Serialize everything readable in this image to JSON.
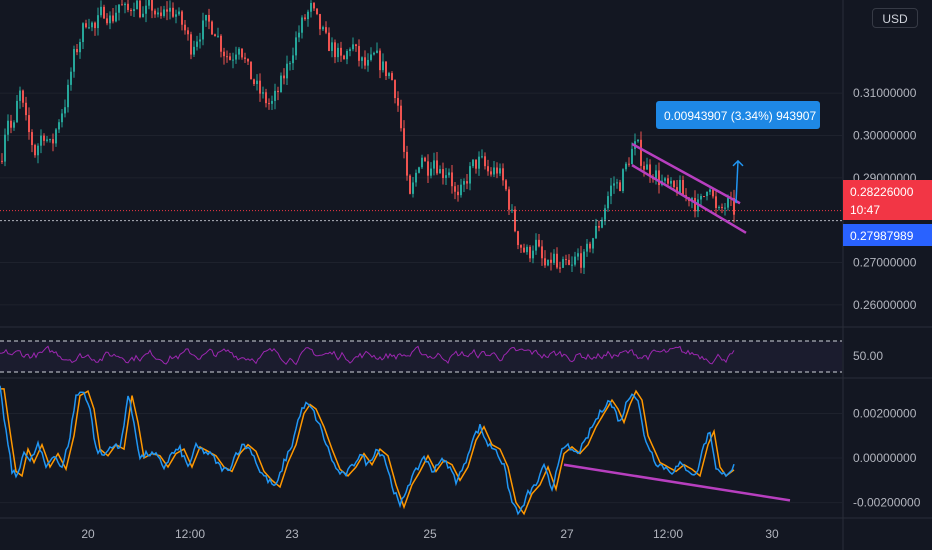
{
  "currency_button": "USD",
  "chart_data": {
    "type": "candlestick",
    "x_ticks": [
      "20",
      "12:00",
      "23",
      "25",
      "27",
      "12:00",
      "30"
    ],
    "price_ticks": [
      "0.31000000",
      "0.30000000",
      "0.29000000",
      "0.27000000",
      "0.26000000"
    ],
    "price_ylim": [
      0.255,
      0.332
    ],
    "last_price": {
      "label": "0.28226000",
      "value": 0.28226,
      "countdown": "10:47",
      "color": "#f23645"
    },
    "crosshair_price": {
      "label": "0.27987989",
      "value": 0.27988,
      "color": "#2962ff"
    },
    "measure_label": "0.00943907 (3.34%) 943907",
    "price_path": [
      [
        0,
        0.294
      ],
      [
        6,
        0.305
      ],
      [
        12,
        0.3
      ],
      [
        18,
        0.311
      ],
      [
        26,
        0.302
      ],
      [
        34,
        0.296
      ],
      [
        42,
        0.301
      ],
      [
        50,
        0.297
      ],
      [
        58,
        0.304
      ],
      [
        66,
        0.309
      ],
      [
        72,
        0.318
      ],
      [
        78,
        0.322
      ],
      [
        86,
        0.328
      ],
      [
        94,
        0.325
      ],
      [
        102,
        0.33
      ],
      [
        110,
        0.327
      ],
      [
        118,
        0.331
      ],
      [
        126,
        0.329
      ],
      [
        134,
        0.332
      ],
      [
        142,
        0.328
      ],
      [
        150,
        0.331
      ],
      [
        158,
        0.327
      ],
      [
        166,
        0.33
      ],
      [
        174,
        0.329
      ],
      [
        182,
        0.326
      ],
      [
        190,
        0.321
      ],
      [
        198,
        0.324
      ],
      [
        206,
        0.327
      ],
      [
        214,
        0.325
      ],
      [
        222,
        0.32
      ],
      [
        230,
        0.318
      ],
      [
        238,
        0.322
      ],
      [
        246,
        0.316
      ],
      [
        254,
        0.312
      ],
      [
        262,
        0.309
      ],
      [
        270,
        0.307
      ],
      [
        278,
        0.311
      ],
      [
        286,
        0.316
      ],
      [
        294,
        0.322
      ],
      [
        302,
        0.327
      ],
      [
        310,
        0.33
      ],
      [
        318,
        0.326
      ],
      [
        326,
        0.322
      ],
      [
        334,
        0.32
      ],
      [
        342,
        0.317
      ],
      [
        350,
        0.322
      ],
      [
        358,
        0.318
      ],
      [
        366,
        0.316
      ],
      [
        374,
        0.319
      ],
      [
        382,
        0.316
      ],
      [
        390,
        0.314
      ],
      [
        396,
        0.309
      ],
      [
        402,
        0.298
      ],
      [
        408,
        0.284
      ],
      [
        414,
        0.29
      ],
      [
        420,
        0.296
      ],
      [
        426,
        0.292
      ],
      [
        432,
        0.295
      ],
      [
        440,
        0.291
      ],
      [
        448,
        0.292
      ],
      [
        456,
        0.284
      ],
      [
        464,
        0.289
      ],
      [
        472,
        0.293
      ],
      [
        480,
        0.294
      ],
      [
        488,
        0.291
      ],
      [
        496,
        0.292
      ],
      [
        504,
        0.288
      ],
      [
        510,
        0.282
      ],
      [
        516,
        0.276
      ],
      [
        522,
        0.273
      ],
      [
        528,
        0.272
      ],
      [
        534,
        0.275
      ],
      [
        540,
        0.271
      ],
      [
        546,
        0.268
      ],
      [
        552,
        0.272
      ],
      [
        558,
        0.267
      ],
      [
        564,
        0.27
      ],
      [
        570,
        0.268
      ],
      [
        576,
        0.272
      ],
      [
        582,
        0.27
      ],
      [
        588,
        0.274
      ],
      [
        594,
        0.277
      ],
      [
        600,
        0.28
      ],
      [
        606,
        0.285
      ],
      [
        612,
        0.289
      ],
      [
        618,
        0.288
      ],
      [
        624,
        0.292
      ],
      [
        630,
        0.296
      ],
      [
        636,
        0.298
      ],
      [
        642,
        0.293
      ],
      [
        648,
        0.292
      ],
      [
        654,
        0.291
      ],
      [
        660,
        0.289
      ],
      [
        666,
        0.288
      ],
      [
        672,
        0.287
      ],
      [
        678,
        0.288
      ],
      [
        684,
        0.285
      ],
      [
        690,
        0.286
      ],
      [
        696,
        0.283
      ],
      [
        702,
        0.285
      ],
      [
        708,
        0.29
      ],
      [
        712,
        0.285
      ],
      [
        716,
        0.281
      ],
      [
        722,
        0.283
      ],
      [
        728,
        0.284
      ],
      [
        734,
        0.282
      ]
    ],
    "flag_upper": [
      [
        632,
        0.298
      ],
      [
        740,
        0.284
      ]
    ],
    "flag_lower": [
      [
        632,
        0.293
      ],
      [
        746,
        0.277
      ]
    ],
    "projection": [
      [
        736,
        0.284
      ],
      [
        738,
        0.294
      ]
    ],
    "rsi": {
      "label": "50.00",
      "upper": 70,
      "lower": 30,
      "ylim": [
        0,
        100
      ],
      "color": "#9c27b0"
    },
    "oscillator": {
      "ticks": [
        "0.00200000",
        "0.00000000",
        "-0.00200000"
      ],
      "ylim": [
        -0.0026,
        0.0035
      ],
      "fast_color": "#2196f3",
      "slow_color": "#ff9800",
      "path": [
        [
          0,
          0.0031
        ],
        [
          6,
          0.0012
        ],
        [
          12,
          -0.0006
        ],
        [
          18,
          -0.0008
        ],
        [
          24,
          0.0004
        ],
        [
          30,
          -0.0002
        ],
        [
          38,
          0.0006
        ],
        [
          46,
          -0.0004
        ],
        [
          54,
          0.0002
        ],
        [
          62,
          -0.0005
        ],
        [
          70,
          0.001
        ],
        [
          76,
          0.0028
        ],
        [
          84,
          0.003
        ],
        [
          90,
          0.0022
        ],
        [
          96,
          0.0004
        ],
        [
          104,
          0.0001
        ],
        [
          112,
          0.0006
        ],
        [
          120,
          0.0004
        ],
        [
          128,
          0.0028
        ],
        [
          134,
          0.0016
        ],
        [
          140,
          0.0
        ],
        [
          148,
          0.0002
        ],
        [
          156,
          0.0001
        ],
        [
          164,
          -0.0004
        ],
        [
          172,
          0.0002
        ],
        [
          180,
          0.0004
        ],
        [
          188,
          -0.0004
        ],
        [
          196,
          0.0005
        ],
        [
          204,
          0.0003
        ],
        [
          212,
          0.0001
        ],
        [
          220,
          -0.0004
        ],
        [
          228,
          -0.0006
        ],
        [
          236,
          0.0002
        ],
        [
          244,
          0.0006
        ],
        [
          252,
          0.0003
        ],
        [
          260,
          -0.0006
        ],
        [
          268,
          -0.001
        ],
        [
          276,
          -0.0013
        ],
        [
          284,
          -0.0002
        ],
        [
          292,
          0.0006
        ],
        [
          300,
          0.002
        ],
        [
          306,
          0.0024
        ],
        [
          312,
          0.0022
        ],
        [
          320,
          0.0014
        ],
        [
          328,
          0.0004
        ],
        [
          336,
          -0.0005
        ],
        [
          344,
          -0.0008
        ],
        [
          352,
          -0.0004
        ],
        [
          360,
          0.0002
        ],
        [
          368,
          -0.0003
        ],
        [
          376,
          0.0004
        ],
        [
          384,
          0.0001
        ],
        [
          392,
          -0.0012
        ],
        [
          400,
          -0.0022
        ],
        [
          408,
          -0.0012
        ],
        [
          416,
          -0.0006
        ],
        [
          424,
          0.0001
        ],
        [
          432,
          -0.0006
        ],
        [
          440,
          -0.0001
        ],
        [
          448,
          -0.0003
        ],
        [
          456,
          -0.001
        ],
        [
          464,
          -0.0004
        ],
        [
          472,
          0.0008
        ],
        [
          480,
          0.0014
        ],
        [
          488,
          0.0006
        ],
        [
          496,
          0.0004
        ],
        [
          504,
          -0.0004
        ],
        [
          512,
          -0.002
        ],
        [
          520,
          -0.0025
        ],
        [
          528,
          -0.0016
        ],
        [
          536,
          -0.0012
        ],
        [
          544,
          -0.0004
        ],
        [
          552,
          -0.0014
        ],
        [
          560,
          0.0002
        ],
        [
          568,
          0.0005
        ],
        [
          576,
          0.0002
        ],
        [
          584,
          0.0006
        ],
        [
          592,
          0.0014
        ],
        [
          600,
          0.002
        ],
        [
          608,
          0.0026
        ],
        [
          614,
          0.0022
        ],
        [
          620,
          0.0016
        ],
        [
          626,
          0.0024
        ],
        [
          632,
          0.003
        ],
        [
          638,
          0.0026
        ],
        [
          644,
          0.001
        ],
        [
          650,
          0.0004
        ],
        [
          656,
          -0.0002
        ],
        [
          664,
          -0.0004
        ],
        [
          672,
          -0.0006
        ],
        [
          680,
          -0.0003
        ],
        [
          688,
          -0.0005
        ],
        [
          696,
          -0.0008
        ],
        [
          704,
          0.0006
        ],
        [
          710,
          0.0012
        ],
        [
          716,
          -0.0004
        ],
        [
          722,
          -0.0008
        ],
        [
          728,
          -0.0006
        ],
        [
          734,
          -0.0004
        ]
      ],
      "divergence": [
        [
          564,
          -0.0003
        ],
        [
          790,
          -0.0019
        ]
      ]
    },
    "colors": {
      "up": "#26a69a",
      "down": "#ef5350",
      "drawing": "#b73fbf",
      "projection": "#2196f3"
    }
  }
}
